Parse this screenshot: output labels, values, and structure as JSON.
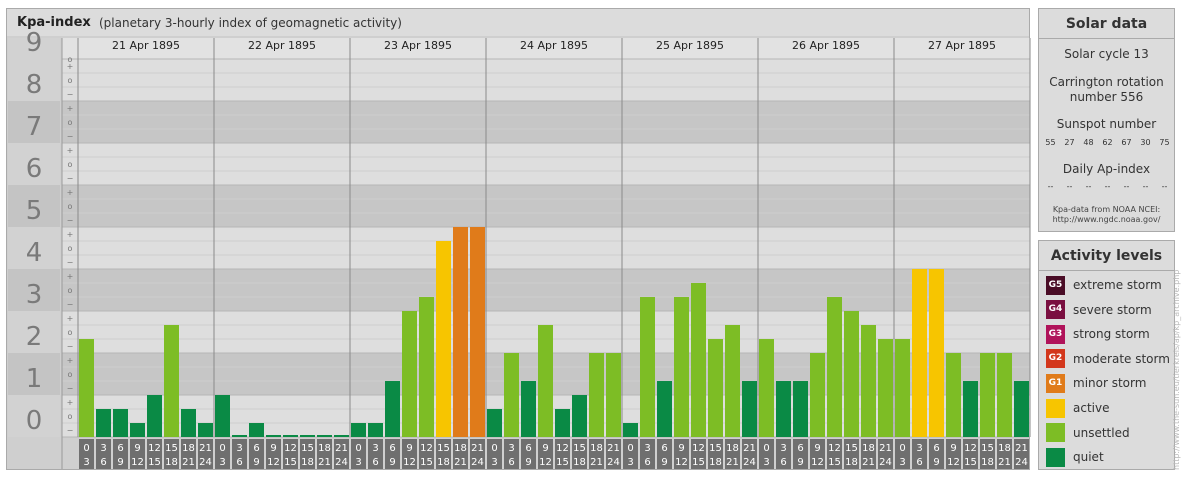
{
  "title": {
    "main": "Kpa-index",
    "subtitle": "(planetary 3-hourly index of geomagnetic activity)"
  },
  "chart_data": {
    "type": "bar",
    "y_range": [
      0,
      9
    ],
    "y_ticks": [
      "0",
      "1",
      "2",
      "3",
      "4",
      "5",
      "6",
      "7",
      "8",
      "9"
    ],
    "sub_ticks": [
      "−",
      "o",
      "+"
    ],
    "days": [
      "21 Apr 1895",
      "22 Apr 1895",
      "23 Apr 1895",
      "24 Apr 1895",
      "25 Apr 1895",
      "26 Apr 1895",
      "27 Apr 1895"
    ],
    "hour_labels": [
      [
        "0",
        "3"
      ],
      [
        "3",
        "6"
      ],
      [
        "6",
        "9"
      ],
      [
        "9",
        "12"
      ],
      [
        "12",
        "15"
      ],
      [
        "15",
        "18"
      ],
      [
        "18",
        "21"
      ],
      [
        "21",
        "24"
      ]
    ],
    "values": [
      [
        2.333,
        0.667,
        0.667,
        0.333,
        1.0,
        2.667,
        0.667,
        0.333
      ],
      [
        1.0,
        0.0,
        0.333,
        0.0,
        0.0,
        0.0,
        0.0,
        0.0
      ],
      [
        0.333,
        0.333,
        1.333,
        3.0,
        3.333,
        4.667,
        5.0,
        5.0
      ],
      [
        0.667,
        2.0,
        1.333,
        2.667,
        0.667,
        1.0,
        2.0,
        2.0
      ],
      [
        0.333,
        3.333,
        1.333,
        3.333,
        3.667,
        2.333,
        2.667,
        1.333
      ],
      [
        2.333,
        1.333,
        1.333,
        2.0,
        3.333,
        3.0,
        2.667,
        2.333
      ],
      [
        2.333,
        4.0,
        4.0,
        2.0,
        1.333,
        2.0,
        2.0,
        1.333
      ]
    ]
  },
  "solar": {
    "title": "Solar data",
    "cycle": "Solar cycle 13",
    "carrington_line1": "Carrington rotation",
    "carrington_line2": "number 556",
    "sunspot_label": "Sunspot number",
    "sunspot_values": [
      "55",
      "27",
      "48",
      "62",
      "67",
      "30",
      "75"
    ],
    "ap_label": "Daily Ap-index",
    "ap_values": [
      "--",
      "--",
      "--",
      "--",
      "--",
      "--",
      "--"
    ],
    "credit_line1": "Kpa-data from NOAA NCEI:",
    "credit_line2": "http://www.ngdc.noaa.gov/"
  },
  "activity": {
    "title": "Activity levels",
    "levels": [
      {
        "badge": "G5",
        "label": "extreme storm",
        "color": "#4a0d26"
      },
      {
        "badge": "G4",
        "label": "severe storm",
        "color": "#7a0f40"
      },
      {
        "badge": "G3",
        "label": "strong storm",
        "color": "#b0135a"
      },
      {
        "badge": "G2",
        "label": "moderate storm",
        "color": "#d3371c"
      },
      {
        "badge": "G1",
        "label": "minor storm",
        "color": "#e07b1a"
      },
      {
        "badge": "",
        "label": "active",
        "color": "#f7c500"
      },
      {
        "badge": "",
        "label": "unsettled",
        "color": "#7dbd25"
      },
      {
        "badge": "",
        "label": "quiet",
        "color": "#0a8a45"
      }
    ]
  },
  "watermark": "http://www.the-sun.eu/tierkreis/ap/kp_archive.php"
}
